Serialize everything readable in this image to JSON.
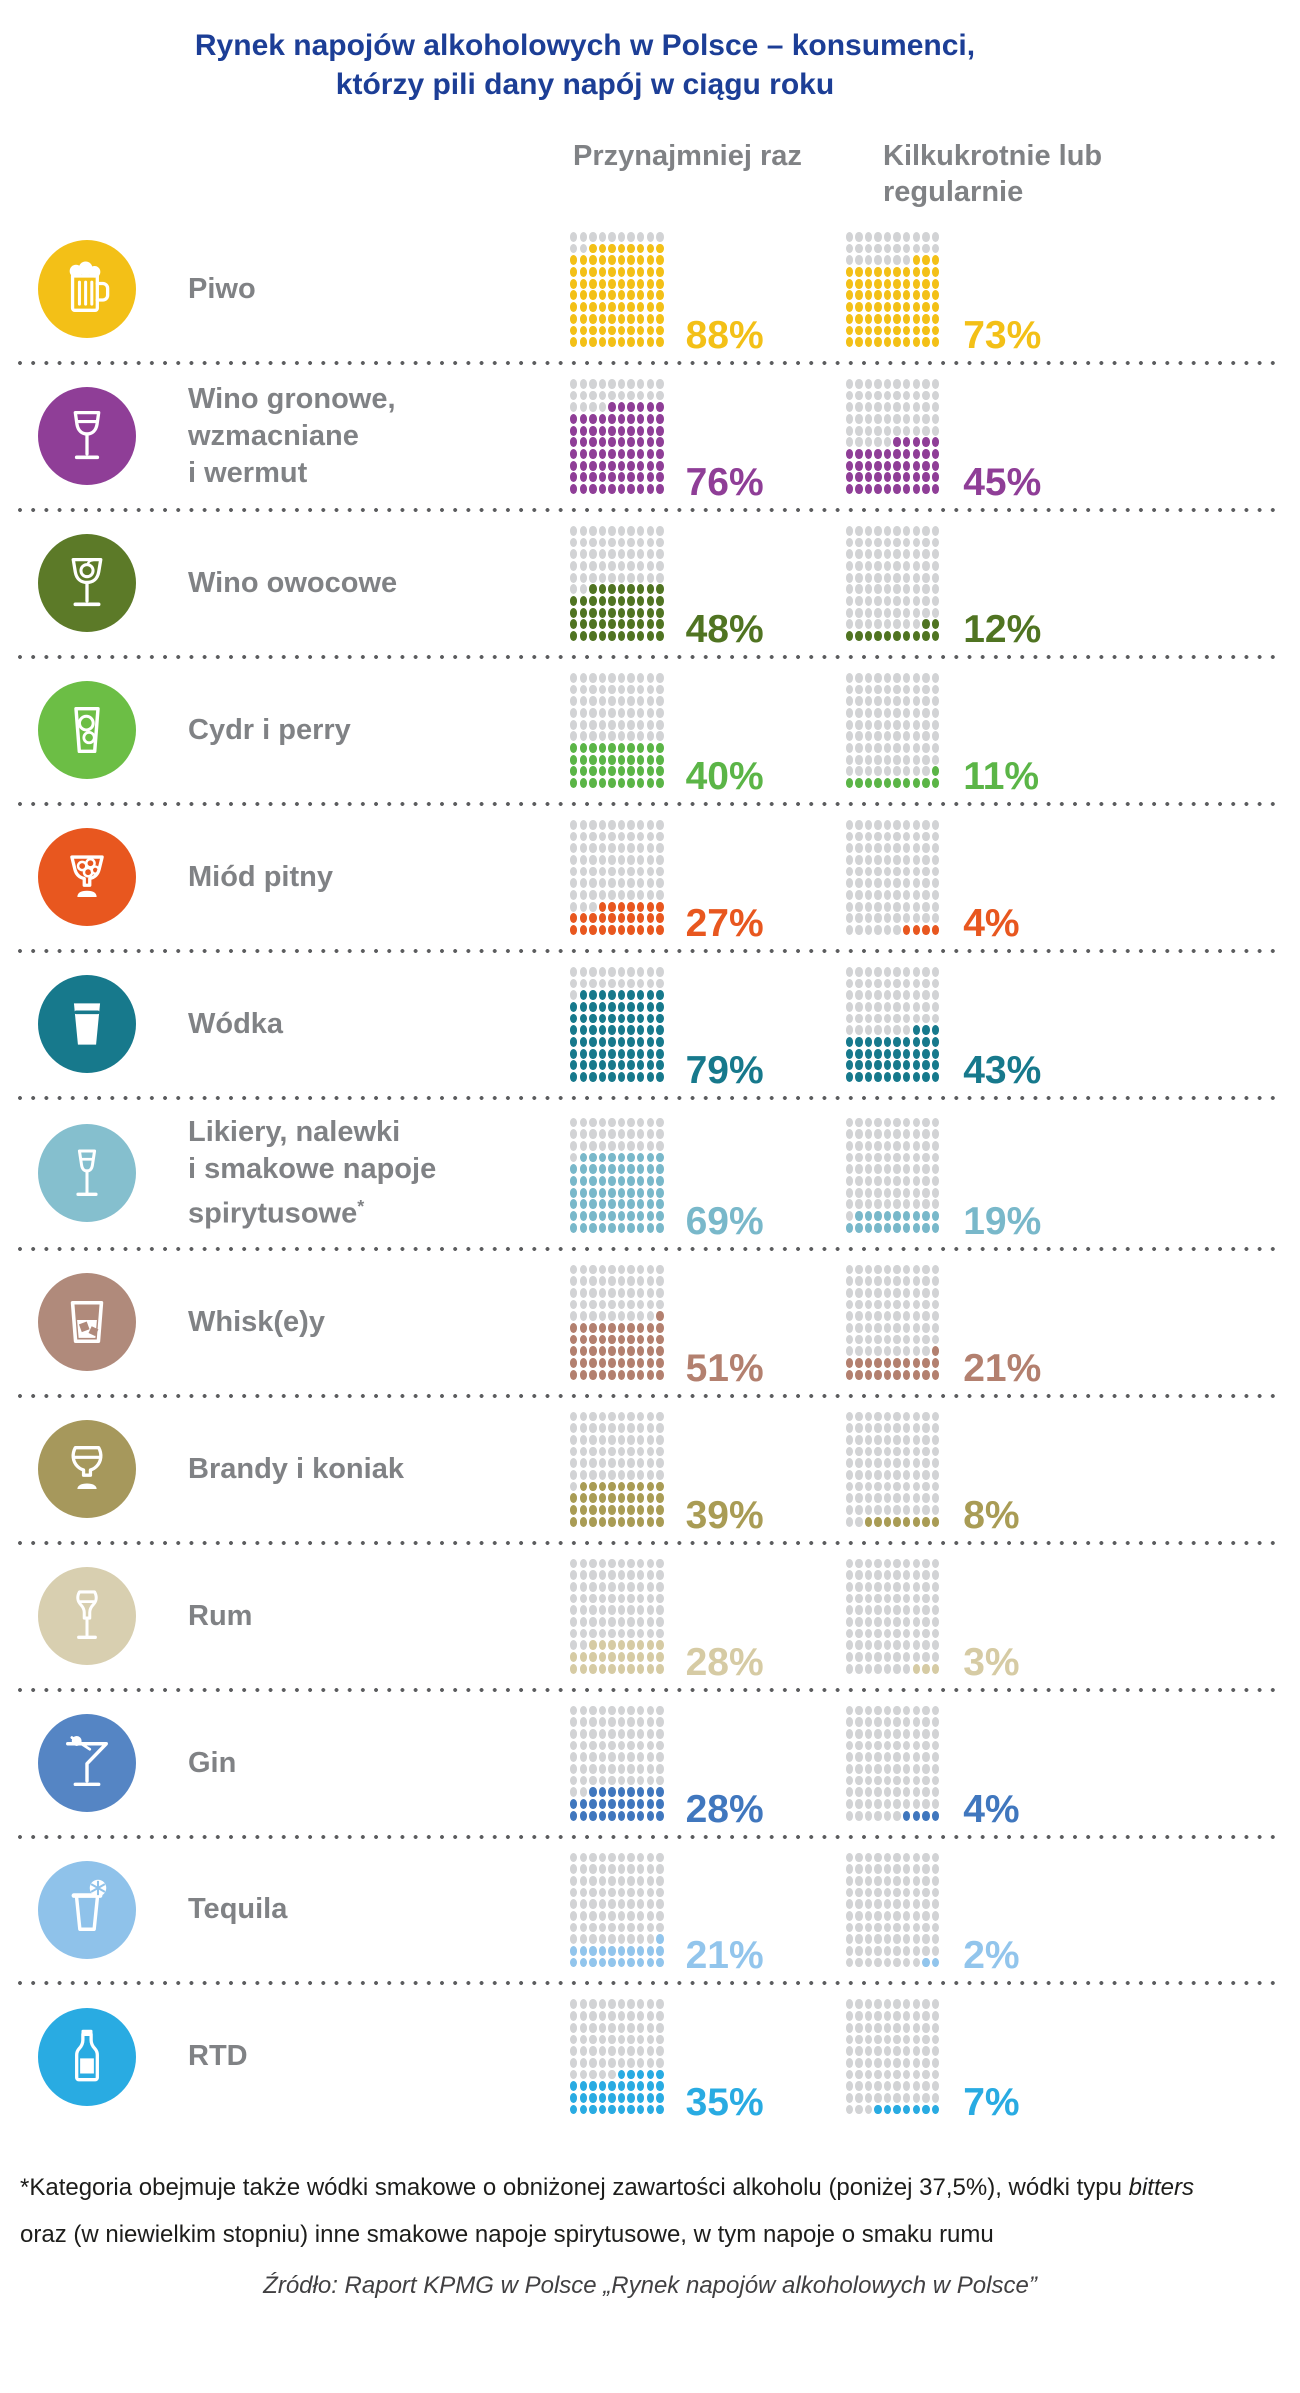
{
  "title": {
    "line1": "Rynek napojów alkoholowych w Polsce – konsumenci,",
    "line2": "którzy pili dany napój w ciągu roku"
  },
  "column_headers": {
    "once": "Przynajmniej raz",
    "regular": "Kilkukrotnie lub regularnie"
  },
  "chart_data": {
    "type": "pictogram",
    "title": "Rynek napojów alkoholowych w Polsce – konsumenci, którzy pili dany napój w ciągu roku",
    "description": "10x10 dot matrix per cell, 1 dot = 1 percentage point; gray dots are the unfilled remainder",
    "unit": "%",
    "categories": [
      "Piwo",
      "Wino gronowe, wzmacniane i wermut",
      "Wino owocowe",
      "Cydr i perry",
      "Miód pitny",
      "Wódka",
      "Likiery, nalewki i smakowe napoje spirytusowe*",
      "Whisk(e)y",
      "Brandy i koniak",
      "Rum",
      "Gin",
      "Tequila",
      "RTD"
    ],
    "series": [
      {
        "name": "Przynajmniej raz",
        "values": [
          88,
          76,
          48,
          40,
          27,
          79,
          69,
          51,
          39,
          28,
          28,
          21,
          35
        ]
      },
      {
        "name": "Kilkukrotnie lub regularnie",
        "values": [
          73,
          45,
          12,
          11,
          4,
          43,
          19,
          21,
          8,
          3,
          4,
          2,
          7
        ]
      }
    ]
  },
  "rows": [
    {
      "icon": "beer-mug-icon",
      "label_lines": [
        "Piwo"
      ],
      "color": "#F3C017",
      "icon_color": "#F3C017"
    },
    {
      "icon": "wine-glass-icon",
      "label_lines": [
        "Wino gronowe,",
        "wzmacniane",
        "i wermut"
      ],
      "color": "#8F3E97",
      "icon_color": "#8F3E97"
    },
    {
      "icon": "fruit-wine-glass-icon",
      "label_lines": [
        "Wino owocowe"
      ],
      "color": "#507422",
      "icon_color": "#5C7A28"
    },
    {
      "icon": "cider-glass-icon",
      "label_lines": [
        "Cydr i perry"
      ],
      "color": "#5BB547",
      "icon_color": "#6CBE45"
    },
    {
      "icon": "mead-glass-icon",
      "label_lines": [
        "Miód pitny"
      ],
      "color": "#E8571F",
      "icon_color": "#E8571F"
    },
    {
      "icon": "vodka-shot-icon",
      "label_lines": [
        "Wódka"
      ],
      "color": "#17798C",
      "icon_color": "#17798C"
    },
    {
      "icon": "liqueur-glass-icon",
      "label_lines": [
        "Likiery, nalewki",
        "i smakowe napoje",
        "spirytusowe*"
      ],
      "color": "#79B8CA",
      "icon_color": "#85BFCE"
    },
    {
      "icon": "whisky-tumbler-icon",
      "label_lines": [
        "Whisk(e)y"
      ],
      "color": "#B3806F",
      "icon_color": "#B08A7B"
    },
    {
      "icon": "brandy-snifter-icon",
      "label_lines": [
        "Brandy i koniak"
      ],
      "color": "#A99C55",
      "icon_color": "#A6985C"
    },
    {
      "icon": "rum-glass-icon",
      "label_lines": [
        "Rum"
      ],
      "color": "#D6CBA4",
      "icon_color": "#D8CFB0"
    },
    {
      "icon": "gin-martini-icon",
      "label_lines": [
        "Gin"
      ],
      "color": "#4077BE",
      "icon_color": "#5585C4"
    },
    {
      "icon": "tequila-shot-icon",
      "label_lines": [
        "Tequila"
      ],
      "color": "#92C5EC",
      "icon_color": "#8FC2EA"
    },
    {
      "icon": "rtd-bottle-icon",
      "label_lines": [
        "RTD"
      ],
      "color": "#29ABE2",
      "icon_color": "#29ABE2"
    }
  ],
  "colors": {
    "title": "#1C3E96",
    "header_text": "#808285",
    "label_text": "#808285",
    "empty_dot": "#D2D3D5",
    "separator_dot": "#5B5C5E",
    "footnote_text": "#1D1D1B",
    "source_text": "#414042"
  },
  "footnote": {
    "before_italic": "*Kategoria obejmuje także wódki smakowe o obniżonej zawartości alkoholu (poniżej 37,5%), wódki typu ",
    "italic": "bitters",
    "line2": "oraz (w niewielkim stopniu) inne smakowe napoje spirytusowe, w tym napoje o smaku rumu"
  },
  "source": "Źródło: Raport KPMG w Polsce „Rynek napojów alkoholowych w Polsce”"
}
